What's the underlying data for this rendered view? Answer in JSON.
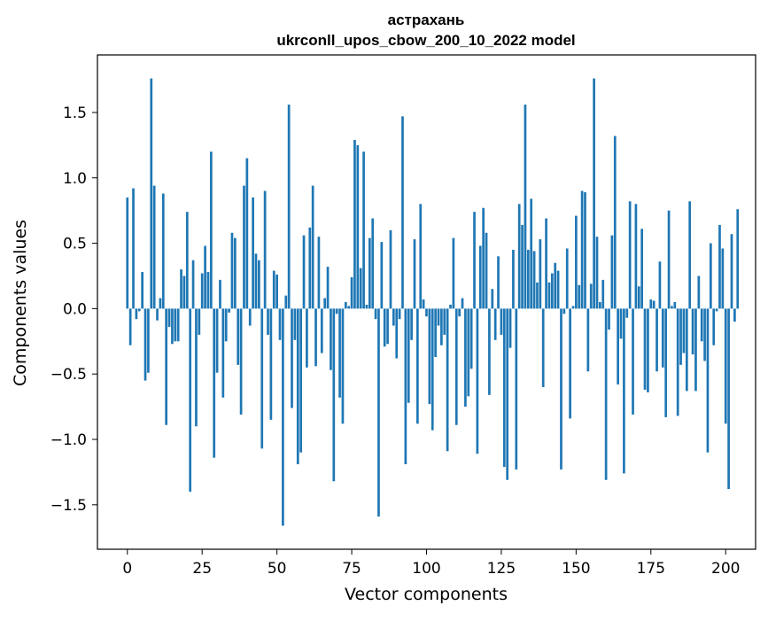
{
  "chart_data": {
    "type": "bar",
    "title_line1": "астрахань",
    "title_line2": "ukrconll_upos_cbow_200_10_2022 model",
    "xlabel": "Vector components",
    "ylabel": "Components values",
    "xlim": [
      -10,
      210
    ],
    "ylim": [
      -1.84,
      1.94
    ],
    "xticks": [
      0,
      25,
      50,
      75,
      100,
      125,
      150,
      175,
      200
    ],
    "yticks": [
      -1.5,
      -1.0,
      -0.5,
      0.0,
      0.5,
      1.0,
      1.5
    ],
    "ytick_labels": [
      "−1.5",
      "−1.0",
      "−0.5",
      "0.0",
      "0.5",
      "1.0",
      "1.5"
    ],
    "bar_color": "#1f77b4",
    "values": [
      0.85,
      -0.28,
      0.92,
      -0.08,
      -0.02,
      0.28,
      -0.55,
      -0.49,
      1.76,
      0.94,
      -0.09,
      0.08,
      0.88,
      -0.89,
      -0.14,
      -0.27,
      -0.25,
      -0.25,
      0.3,
      0.25,
      0.74,
      -1.4,
      0.37,
      -0.9,
      -0.2,
      0.27,
      0.48,
      0.28,
      1.2,
      -1.14,
      -0.49,
      0.22,
      -0.68,
      -0.25,
      -0.03,
      0.58,
      0.54,
      -0.43,
      -0.81,
      0.94,
      1.15,
      -0.13,
      0.85,
      0.42,
      0.37,
      -1.07,
      0.9,
      -0.2,
      -0.85,
      0.29,
      0.26,
      -0.24,
      -1.66,
      0.1,
      1.56,
      -0.76,
      -0.24,
      -1.19,
      -1.1,
      0.56,
      -0.45,
      0.62,
      0.94,
      -0.44,
      0.55,
      -0.34,
      0.08,
      0.32,
      -0.47,
      -1.32,
      -0.04,
      -0.68,
      -0.88,
      0.05,
      0.02,
      0.24,
      1.29,
      1.25,
      0.31,
      1.2,
      0.03,
      0.54,
      0.69,
      -0.08,
      -1.59,
      0.51,
      -0.29,
      -0.27,
      0.6,
      -0.13,
      -0.38,
      -0.08,
      1.47,
      -1.19,
      -0.72,
      -0.24,
      0.53,
      -0.88,
      0.8,
      0.07,
      -0.06,
      -0.73,
      -0.93,
      -0.37,
      -0.13,
      -0.28,
      -0.2,
      -1.09,
      0.03,
      0.54,
      -0.89,
      -0.06,
      0.08,
      -0.75,
      -0.67,
      -0.46,
      0.74,
      -1.11,
      0.48,
      0.77,
      0.58,
      -0.66,
      0.15,
      -0.24,
      0.4,
      -0.2,
      -1.21,
      -1.31,
      -0.3,
      0.45,
      -1.23,
      0.8,
      0.64,
      1.56,
      0.45,
      0.84,
      0.44,
      0.2,
      0.53,
      -0.6,
      0.69,
      0.2,
      0.27,
      0.35,
      0.29,
      -1.23,
      -0.04,
      0.46,
      -0.84,
      0.02,
      0.71,
      0.18,
      0.9,
      0.89,
      -0.48,
      0.19,
      1.76,
      0.55,
      0.05,
      0.22,
      -1.31,
      -0.16,
      0.56,
      1.32,
      -0.58,
      -0.23,
      -1.26,
      -0.07,
      0.82,
      -0.81,
      0.8,
      0.17,
      0.61,
      -0.62,
      -0.64,
      0.07,
      0.06,
      -0.48,
      0.36,
      -0.45,
      -0.83,
      0.75,
      0.02,
      0.05,
      -0.82,
      -0.43,
      -0.34,
      -0.63,
      0.82,
      -0.35,
      -0.63,
      0.25,
      -0.25,
      -0.4,
      -1.1,
      0.5,
      -0.28,
      -0.02,
      0.64,
      0.46,
      -0.88,
      -1.38,
      0.57,
      -0.1,
      0.76
    ]
  }
}
